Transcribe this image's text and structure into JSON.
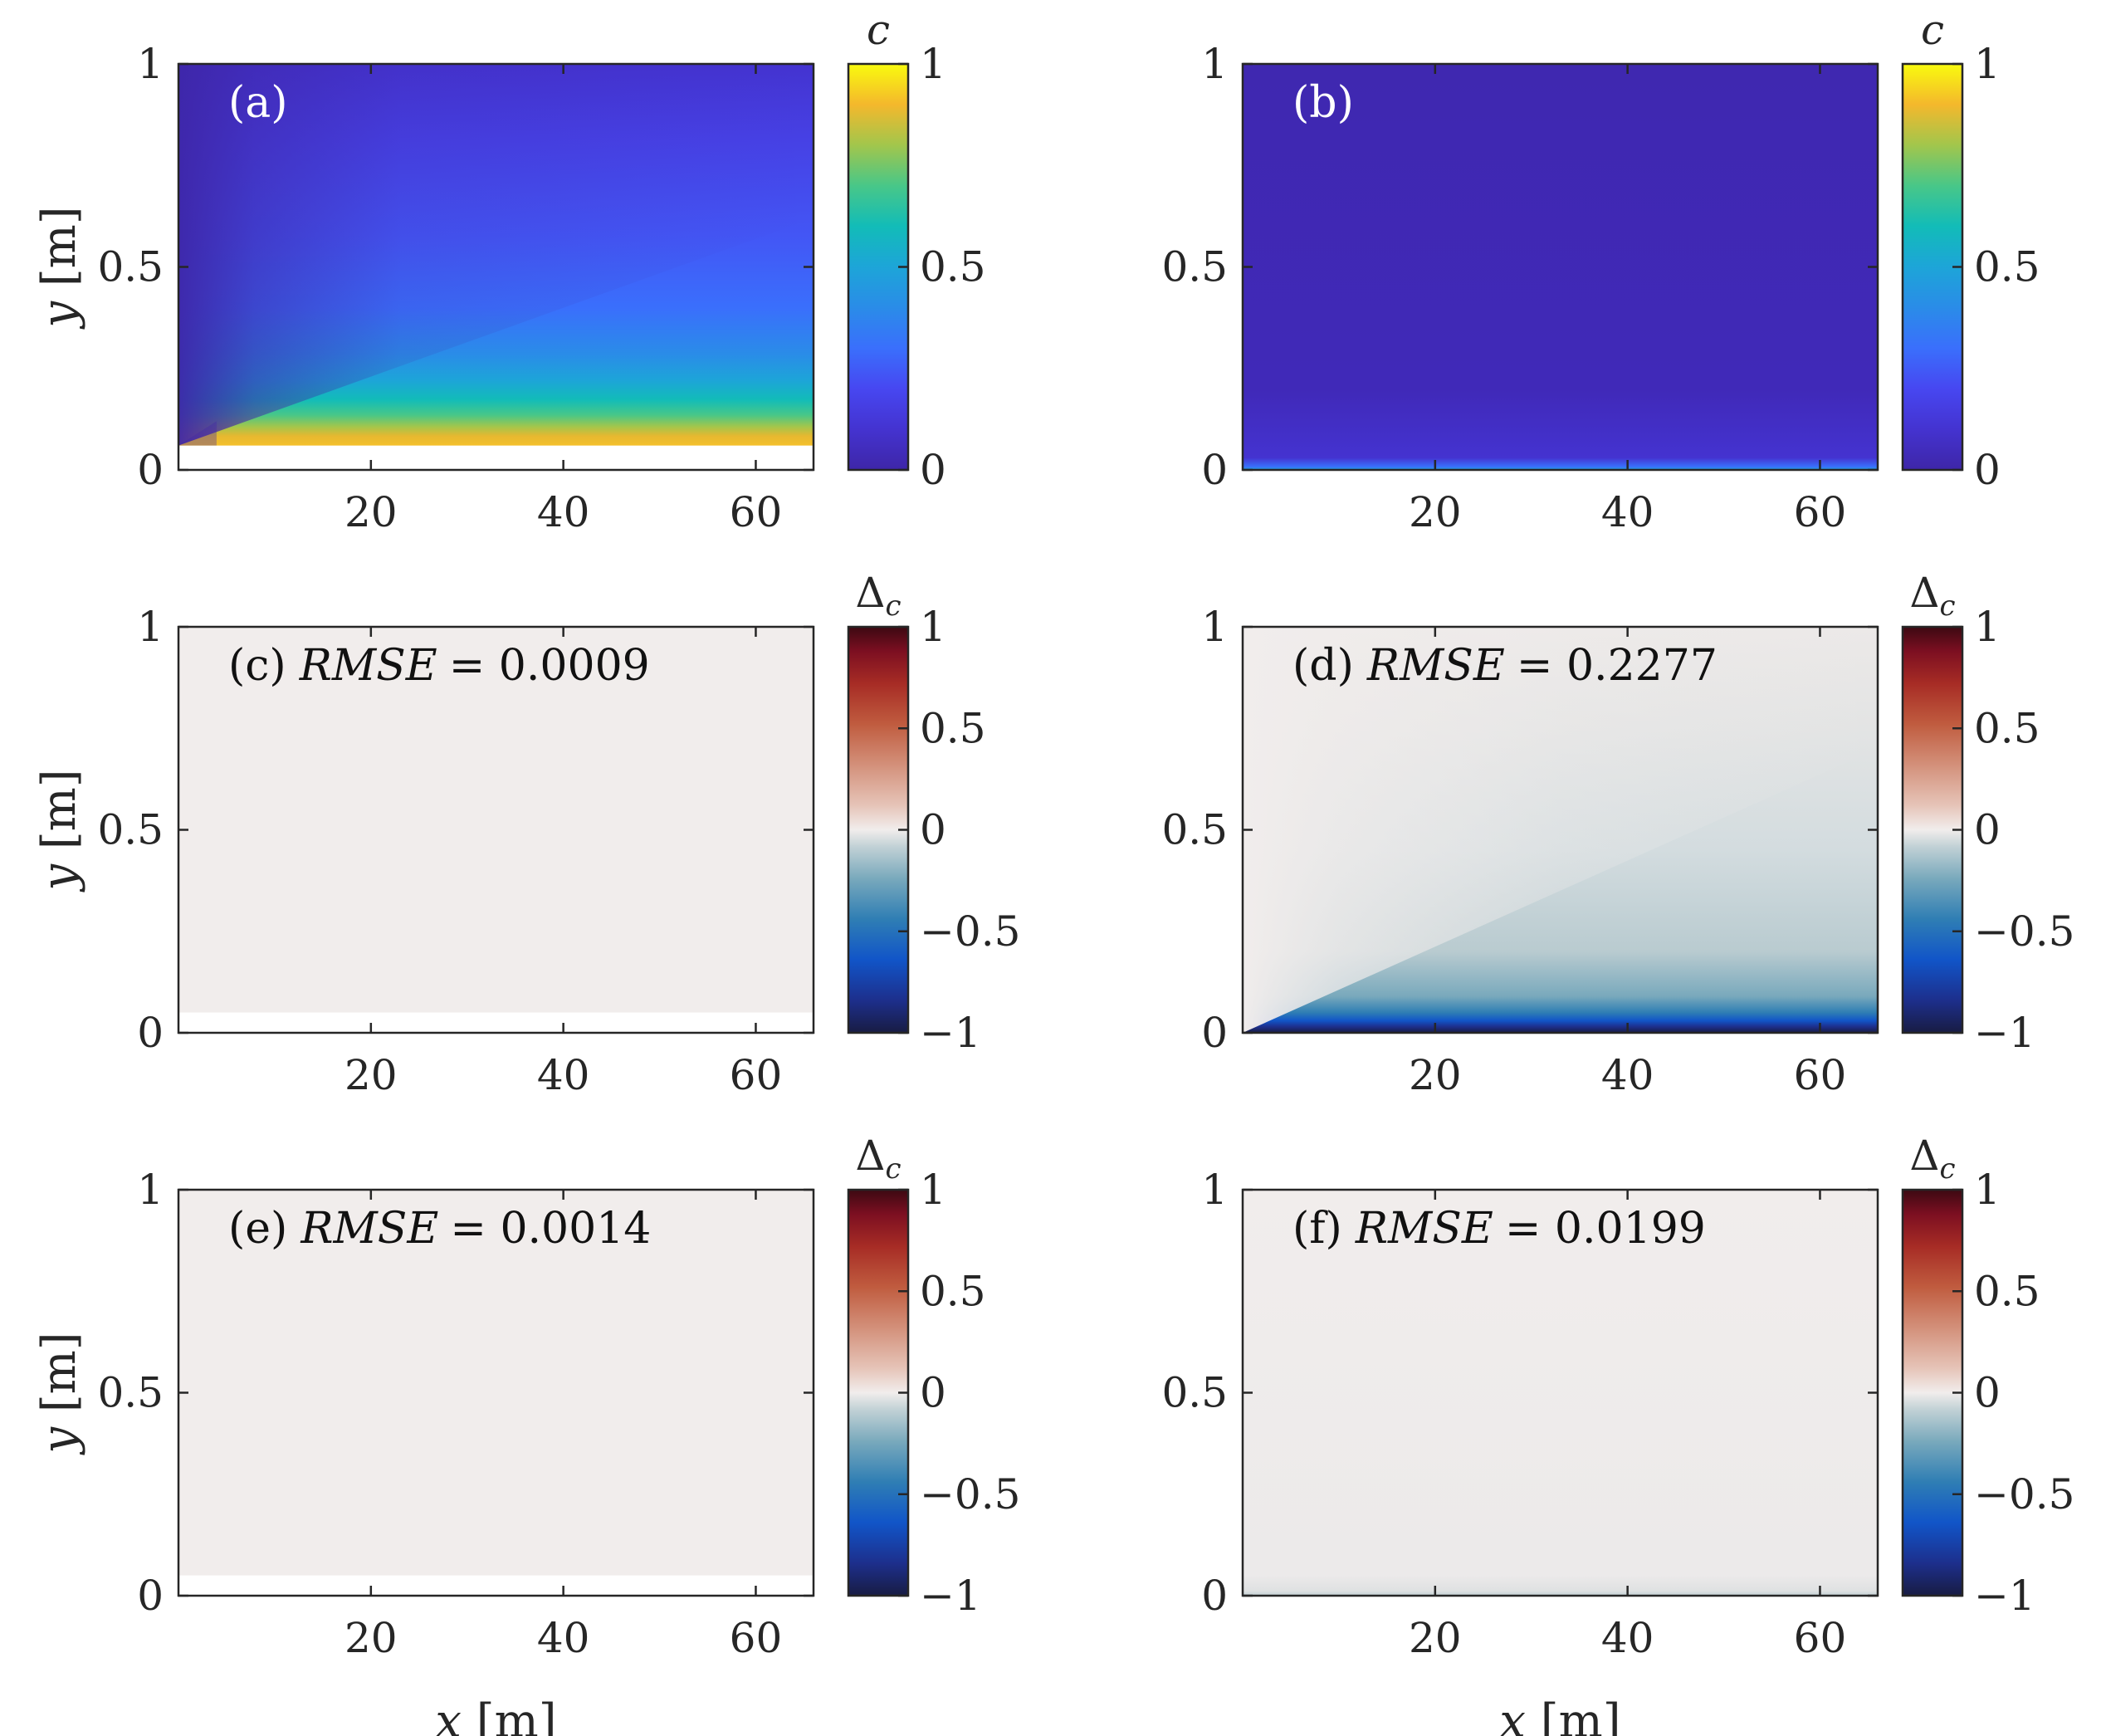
{
  "chart_data": [
    {
      "id": "a",
      "type": "heatmap",
      "panel_label": "(a)",
      "annotation": "",
      "field": "concentration_reference",
      "xlabel": "x [m]",
      "ylabel": "y [m]",
      "xlim": [
        0,
        66
      ],
      "ylim": [
        0,
        1
      ],
      "xticks": [
        "20",
        "40",
        "60"
      ],
      "yticks": [
        "0",
        "0.5",
        "1"
      ],
      "show_xlabel": false,
      "show_ylabel": true,
      "colorbar": {
        "label": "c",
        "sub": "",
        "range": [
          0,
          1
        ],
        "ticks": [
          "0",
          "0.5",
          "1"
        ],
        "colormap": "parula"
      }
    },
    {
      "id": "b",
      "type": "heatmap",
      "panel_label": "(b)",
      "annotation": "",
      "field": "concentration_prediction",
      "xlabel": "x [m]",
      "ylabel": "y [m]",
      "xlim": [
        0,
        66
      ],
      "ylim": [
        0,
        1
      ],
      "xticks": [
        "20",
        "40",
        "60"
      ],
      "yticks": [
        "0",
        "0.5",
        "1"
      ],
      "show_xlabel": false,
      "show_ylabel": false,
      "colorbar": {
        "label": "c",
        "sub": "",
        "range": [
          0,
          1
        ],
        "ticks": [
          "0",
          "0.5",
          "1"
        ],
        "colormap": "parula"
      }
    },
    {
      "id": "c",
      "type": "heatmap",
      "panel_label": "(c)",
      "annotation": "RMSE = 0.0009",
      "rmse_label": "RMSE",
      "rmse_value": "0.0009",
      "field": "difference_near_zero",
      "xlabel": "x [m]",
      "ylabel": "y [m]",
      "xlim": [
        0,
        66
      ],
      "ylim": [
        0,
        1
      ],
      "xticks": [
        "20",
        "40",
        "60"
      ],
      "yticks": [
        "0",
        "0.5",
        "1"
      ],
      "show_xlabel": false,
      "show_ylabel": true,
      "colorbar": {
        "label": "Δ",
        "sub": "c",
        "range": [
          -1,
          1
        ],
        "ticks": [
          "−1",
          "−0.5",
          "0",
          "0.5",
          "1"
        ],
        "colormap": "balance"
      }
    },
    {
      "id": "d",
      "type": "heatmap",
      "panel_label": "(d)",
      "annotation": "RMSE = 0.2277",
      "rmse_label": "RMSE",
      "rmse_value": "0.2277",
      "field": "difference_negative_near_wall",
      "xlabel": "x [m]",
      "ylabel": "y [m]",
      "xlim": [
        0,
        66
      ],
      "ylim": [
        0,
        1
      ],
      "xticks": [
        "20",
        "40",
        "60"
      ],
      "yticks": [
        "0",
        "0.5",
        "1"
      ],
      "show_xlabel": false,
      "show_ylabel": false,
      "colorbar": {
        "label": "Δ",
        "sub": "c",
        "range": [
          -1,
          1
        ],
        "ticks": [
          "−1",
          "−0.5",
          "0",
          "0.5",
          "1"
        ],
        "colormap": "balance"
      }
    },
    {
      "id": "e",
      "type": "heatmap",
      "panel_label": "(e)",
      "annotation": "RMSE = 0.0014",
      "rmse_label": "RMSE",
      "rmse_value": "0.0014",
      "field": "difference_near_zero",
      "xlabel": "x [m]",
      "ylabel": "y [m]",
      "xlim": [
        0,
        66
      ],
      "ylim": [
        0,
        1
      ],
      "xticks": [
        "20",
        "40",
        "60"
      ],
      "yticks": [
        "0",
        "0.5",
        "1"
      ],
      "show_xlabel": true,
      "show_ylabel": true,
      "colorbar": {
        "label": "Δ",
        "sub": "c",
        "range": [
          -1,
          1
        ],
        "ticks": [
          "−1",
          "−0.5",
          "0",
          "0.5",
          "1"
        ],
        "colormap": "balance"
      }
    },
    {
      "id": "f",
      "type": "heatmap",
      "panel_label": "(f)",
      "annotation": "RMSE = 0.0199",
      "rmse_label": "RMSE",
      "rmse_value": "0.0199",
      "field": "difference_slight_near_wall",
      "xlabel": "x [m]",
      "ylabel": "y [m]",
      "xlim": [
        0,
        66
      ],
      "ylim": [
        0,
        1
      ],
      "xticks": [
        "20",
        "40",
        "60"
      ],
      "yticks": [
        "0",
        "0.5",
        "1"
      ],
      "show_xlabel": true,
      "show_ylabel": false,
      "colorbar": {
        "label": "Δ",
        "sub": "c",
        "range": [
          -1,
          1
        ],
        "ticks": [
          "−1",
          "−0.5",
          "0",
          "0.5",
          "1"
        ],
        "colormap": "balance"
      }
    }
  ],
  "colors": {
    "parula_low": "#3e26a8",
    "parula_mid": "#1fbfb9",
    "parula_high": "#f9fb0e",
    "balance_low": "#161d3e",
    "balance_mid": "#f1edec",
    "balance_high": "#3c0912",
    "axis": "#262626"
  }
}
